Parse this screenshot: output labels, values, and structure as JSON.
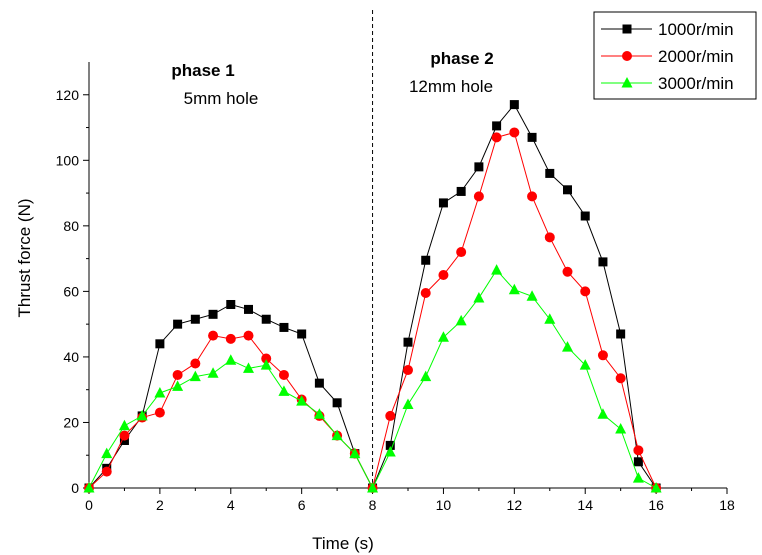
{
  "chart_data": {
    "type": "line",
    "xlabel": "Time (s)",
    "ylabel": "Thrust force (N)",
    "xlim": [
      0,
      18
    ],
    "ylim": [
      0,
      130
    ],
    "xticks": [
      0,
      2,
      4,
      6,
      8,
      10,
      12,
      14,
      16,
      18
    ],
    "yticks": [
      0,
      20,
      40,
      60,
      80,
      100,
      120
    ],
    "grid": false,
    "legend_position": "top-right",
    "series": [
      {
        "name": "1000r/min",
        "color": "#000000",
        "marker": "square",
        "x": [
          0,
          0.5,
          1,
          1.5,
          2,
          2.5,
          3,
          3.5,
          4,
          4.5,
          5,
          5.5,
          6,
          6.5,
          7,
          7.5,
          8,
          8.5,
          9,
          9.5,
          10,
          10.5,
          11,
          11.5,
          12,
          12.5,
          13,
          13.5,
          14,
          14.5,
          15,
          15.5,
          16
        ],
        "values": [
          0,
          6,
          14.5,
          22,
          44,
          50,
          51.5,
          53,
          56,
          54.5,
          51.5,
          49,
          47,
          32,
          26,
          10.5,
          0,
          13,
          44.5,
          69.5,
          87,
          90.5,
          98,
          110.5,
          117,
          107,
          96,
          91,
          83,
          69,
          47,
          8,
          0
        ]
      },
      {
        "name": "2000r/min",
        "color": "#ff0000",
        "marker": "circle",
        "x": [
          0,
          0.5,
          1,
          1.5,
          2,
          2.5,
          3,
          3.5,
          4,
          4.5,
          5,
          5.5,
          6,
          6.5,
          7,
          7.5,
          8,
          8.5,
          9,
          9.5,
          10,
          10.5,
          11,
          11.5,
          12,
          12.5,
          13,
          13.5,
          14,
          14.5,
          15,
          15.5,
          16
        ],
        "values": [
          0,
          5,
          16,
          21.5,
          23,
          34.5,
          38,
          46.5,
          45.5,
          46.5,
          39.5,
          34.5,
          27,
          22,
          16,
          10.5,
          0,
          22,
          36,
          59.5,
          65,
          72,
          89,
          107,
          108.5,
          89,
          76.5,
          66,
          60,
          40.5,
          33.5,
          11.5,
          0
        ]
      },
      {
        "name": "3000r/min",
        "color": "#00ff00",
        "marker": "triangle",
        "x": [
          0,
          0.5,
          1,
          1.5,
          2,
          2.5,
          3,
          3.5,
          4,
          4.5,
          5,
          5.5,
          6,
          6.5,
          7,
          7.5,
          8,
          8.5,
          9,
          9.5,
          10,
          10.5,
          11,
          11.5,
          12,
          12.5,
          13,
          13.5,
          14,
          14.5,
          15,
          15.5,
          16
        ],
        "values": [
          0,
          10.5,
          19,
          22,
          29,
          31,
          34,
          35,
          39,
          36.5,
          37.5,
          29.5,
          26.5,
          22.5,
          16,
          10.5,
          0,
          11,
          25.5,
          34,
          46,
          51,
          58,
          66.5,
          60.5,
          58.5,
          51.5,
          43,
          37.5,
          22.5,
          18,
          3,
          0
        ]
      }
    ],
    "divider_x": 8,
    "annotations": [
      {
        "title": "phase 1",
        "subtitle": "5mm hole"
      },
      {
        "title": "phase 2",
        "subtitle": "12mm hole"
      }
    ]
  }
}
